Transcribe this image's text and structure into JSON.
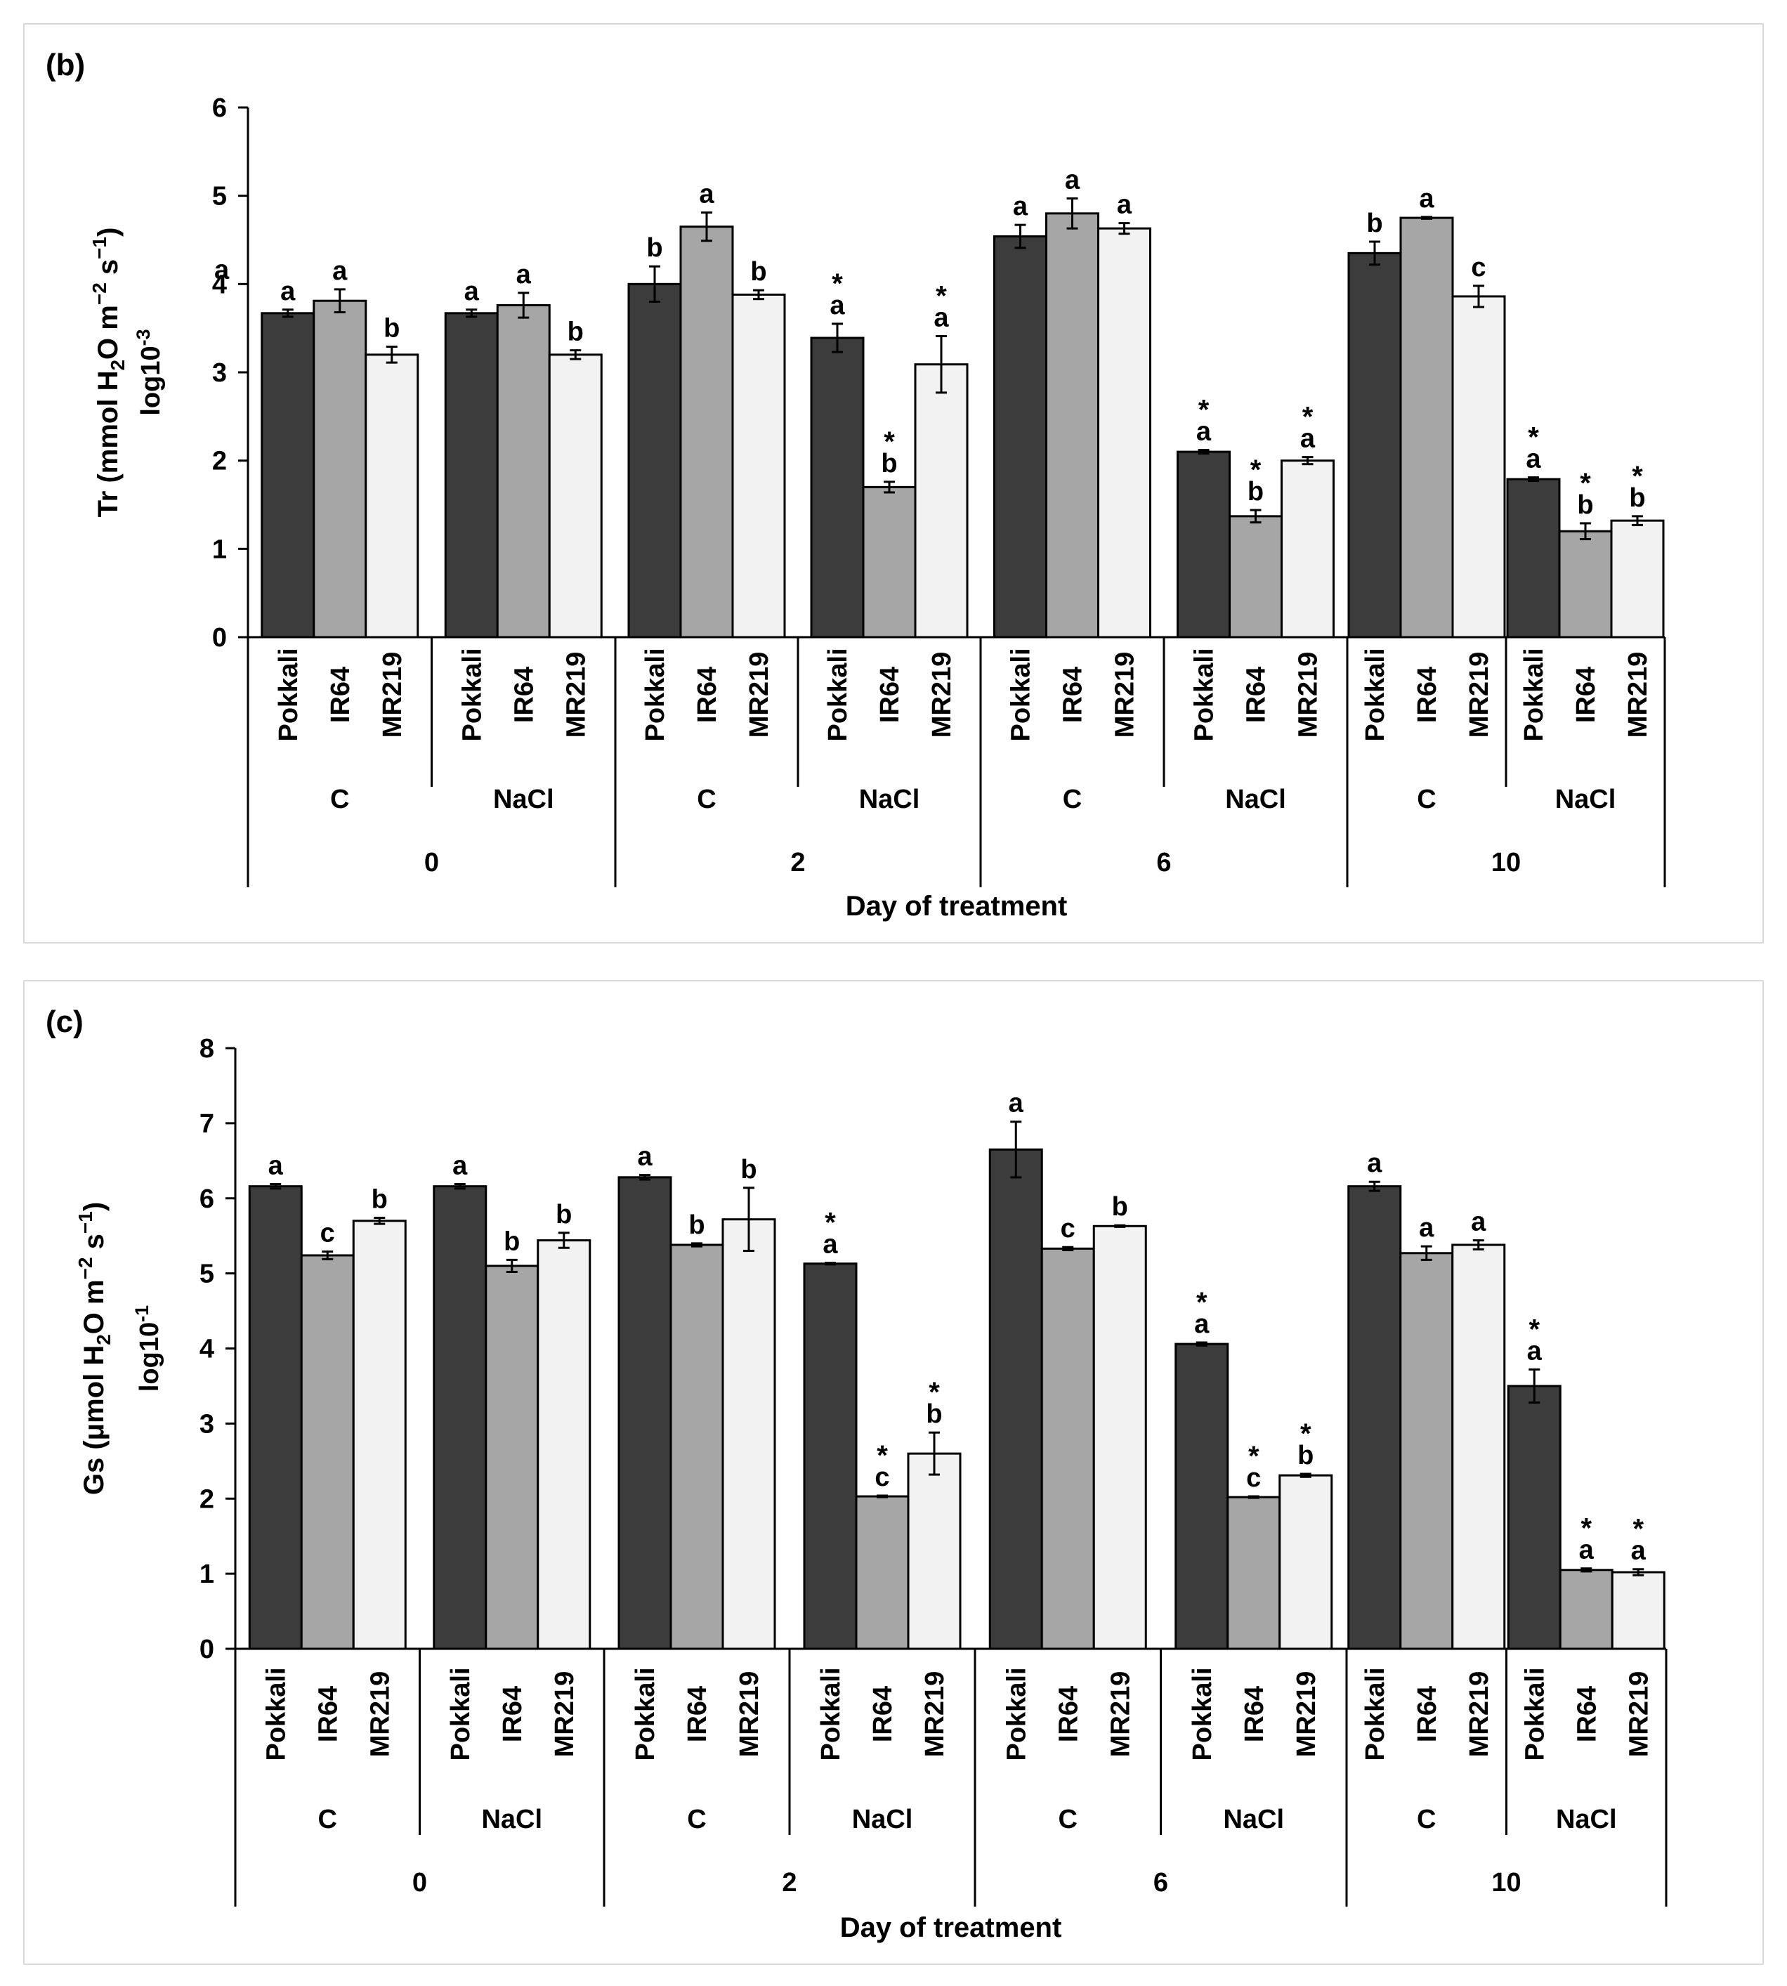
{
  "chart_data": [
    {
      "panel_label": "(b)",
      "type": "bar",
      "ylabel_parts": [
        "Tr (mmol H",
        "2",
        "O m",
        "−2",
        " s",
        "−1",
        ")"
      ],
      "ylabel_scale": [
        "log10",
        "-3"
      ],
      "xlabel": "Day of treatment",
      "ylim": [
        0,
        6
      ],
      "yticks": [
        "0",
        "1",
        "2",
        "3",
        "4",
        "5",
        "6"
      ],
      "days": [
        "0",
        "2",
        "6",
        "10"
      ],
      "treatments": [
        "C",
        "NaCl"
      ],
      "varieties": [
        "Pokkali",
        "IR64",
        "MR219"
      ],
      "series": [
        {
          "day": "0",
          "treatment": "C",
          "values": [
            3.67,
            3.81,
            3.2
          ],
          "errors": [
            0.04,
            0.13,
            0.09
          ],
          "letters": [
            "a",
            "a",
            "b"
          ],
          "stars": [
            false,
            false,
            false
          ]
        },
        {
          "day": "0",
          "treatment": "NaCl",
          "values": [
            3.67,
            3.76,
            3.2
          ],
          "errors": [
            0.04,
            0.14,
            0.05
          ],
          "letters": [
            "a",
            "a",
            "b"
          ],
          "stars": [
            false,
            false,
            false
          ]
        },
        {
          "day": "2",
          "treatment": "C",
          "values": [
            4.0,
            4.65,
            3.88
          ],
          "errors": [
            0.2,
            0.16,
            0.05
          ],
          "letters": [
            "b",
            "a",
            "b"
          ],
          "stars": [
            false,
            false,
            false
          ]
        },
        {
          "day": "2",
          "treatment": "NaCl",
          "values": [
            3.39,
            1.7,
            3.09
          ],
          "errors": [
            0.16,
            0.06,
            0.32
          ],
          "letters": [
            "a",
            "b",
            "a"
          ],
          "stars": [
            true,
            true,
            true
          ]
        },
        {
          "day": "6",
          "treatment": "C",
          "values": [
            4.54,
            4.8,
            4.63
          ],
          "errors": [
            0.13,
            0.17,
            0.06
          ],
          "letters": [
            "a",
            "a",
            "a"
          ],
          "stars": [
            false,
            false,
            false
          ]
        },
        {
          "day": "6",
          "treatment": "NaCl",
          "values": [
            2.1,
            1.37,
            2.0
          ],
          "errors": [
            0.02,
            0.07,
            0.04
          ],
          "letters": [
            "a",
            "b",
            "a"
          ],
          "stars": [
            true,
            true,
            true
          ]
        },
        {
          "day": "10",
          "treatment": "C",
          "values": [
            4.35,
            4.75,
            3.86
          ],
          "errors": [
            0.13,
            0.01,
            0.12
          ],
          "letters": [
            "b",
            "a",
            "c"
          ],
          "stars": [
            false,
            false,
            false
          ]
        },
        {
          "day": "10",
          "treatment": "NaCl",
          "values": [
            1.79,
            1.2,
            1.32
          ],
          "errors": [
            0.02,
            0.09,
            0.05
          ],
          "letters": [
            "a",
            "b",
            "b"
          ],
          "stars": [
            true,
            true,
            true
          ]
        }
      ],
      "extra_annotations": [
        {
          "text": "a",
          "near": "y-axis tick 4"
        }
      ],
      "colors": {
        "Pokkali": "#3c3c3c",
        "IR64": "#a6a6a6",
        "MR219": "#f2f2f2",
        "star": "#ff0000"
      }
    },
    {
      "panel_label": "(c)",
      "type": "bar",
      "ylabel_parts": [
        "Gs (μmol H",
        "2",
        "O m",
        "−2",
        " s",
        "−1",
        ")"
      ],
      "ylabel_scale": [
        "log10",
        "-1"
      ],
      "xlabel": "Day of treatment",
      "ylim": [
        0,
        8
      ],
      "yticks": [
        "0",
        "1",
        "2",
        "3",
        "4",
        "5",
        "6",
        "7",
        "8"
      ],
      "days": [
        "0",
        "2",
        "6",
        "10"
      ],
      "treatments": [
        "C",
        "NaCl"
      ],
      "varieties": [
        "Pokkali",
        "IR64",
        "MR219"
      ],
      "series": [
        {
          "day": "0",
          "treatment": "C",
          "values": [
            6.16,
            5.24,
            5.7
          ],
          "errors": [
            0.03,
            0.05,
            0.04
          ],
          "letters": [
            "a",
            "c",
            "b"
          ],
          "stars": [
            false,
            false,
            false
          ]
        },
        {
          "day": "0",
          "treatment": "NaCl",
          "values": [
            6.16,
            5.1,
            5.44
          ],
          "errors": [
            0.03,
            0.08,
            0.1
          ],
          "letters": [
            "a",
            "b",
            "b"
          ],
          "stars": [
            false,
            false,
            false
          ]
        },
        {
          "day": "2",
          "treatment": "C",
          "values": [
            6.28,
            5.38,
            5.72
          ],
          "errors": [
            0.03,
            0.02,
            0.42
          ],
          "letters": [
            "a",
            "b",
            "b"
          ],
          "stars": [
            false,
            false,
            false
          ]
        },
        {
          "day": "2",
          "treatment": "NaCl",
          "values": [
            5.13,
            2.03,
            2.6
          ],
          "errors": [
            0.01,
            0.01,
            0.28
          ],
          "letters": [
            "a",
            "c",
            "b"
          ],
          "stars": [
            true,
            true,
            true
          ]
        },
        {
          "day": "6",
          "treatment": "C",
          "values": [
            6.65,
            5.33,
            5.63
          ],
          "errors": [
            0.37,
            0.02,
            0.01
          ],
          "letters": [
            "a",
            "c",
            "b"
          ],
          "stars": [
            false,
            false,
            false
          ]
        },
        {
          "day": "6",
          "treatment": "NaCl",
          "values": [
            4.06,
            2.02,
            2.31
          ],
          "errors": [
            0.02,
            0.01,
            0.02
          ],
          "letters": [
            "a",
            "c",
            "b"
          ],
          "stars": [
            true,
            true,
            true
          ]
        },
        {
          "day": "10",
          "treatment": "C",
          "values": [
            6.16,
            5.27,
            5.38
          ],
          "errors": [
            0.06,
            0.09,
            0.06
          ],
          "letters": [
            "a",
            "a",
            "a"
          ],
          "stars": [
            false,
            false,
            false
          ]
        },
        {
          "day": "10",
          "treatment": "NaCl",
          "values": [
            3.5,
            1.05,
            1.02
          ],
          "errors": [
            0.22,
            0.02,
            0.04
          ],
          "letters": [
            "a",
            "a",
            "a"
          ],
          "stars": [
            true,
            true,
            true
          ]
        }
      ],
      "extra_annotations": [],
      "colors": {
        "Pokkali": "#3c3c3c",
        "IR64": "#a6a6a6",
        "MR219": "#f2f2f2",
        "star": "#ff0000"
      }
    }
  ]
}
